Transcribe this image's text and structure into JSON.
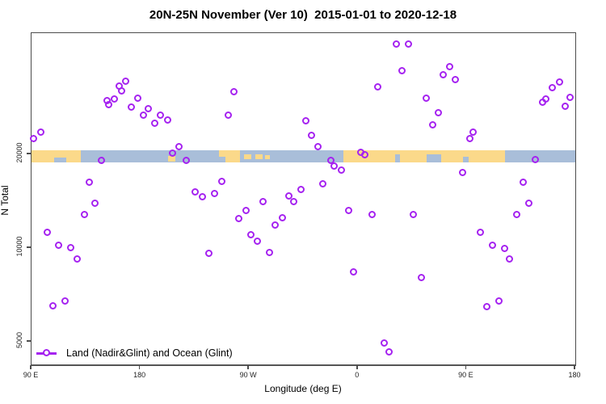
{
  "title": "20N-25N November (Ver 10)  2015-01-01 to 2020-12-18",
  "colors": {
    "marker": "#A522F0",
    "ocean": "#A9BED9",
    "land": "#FBD98A",
    "axis": "#4c4c4c",
    "text": "#000000"
  },
  "chart_data": {
    "type": "scatter",
    "title": "20N-25N November (Ver 10)  2015-01-01 to 2020-12-18",
    "xlabel": "Longitude (deg E)",
    "ylabel": "N Total",
    "x_axis": {
      "note": "longitude axis wraps eastward from 90E; internal coords run 90..540",
      "range": [
        90,
        540
      ],
      "ticks": [
        {
          "pos": 90,
          "label": "90 E"
        },
        {
          "pos": 180,
          "label": "180"
        },
        {
          "pos": 270,
          "label": "90 W"
        },
        {
          "pos": 360,
          "label": "0"
        },
        {
          "pos": 450,
          "label": "90 E"
        },
        {
          "pos": 540,
          "label": "180"
        }
      ]
    },
    "y_axis": {
      "scale": "log",
      "range": [
        4200,
        49000
      ],
      "ticks": [
        {
          "value": 20000,
          "label": "20000"
        },
        {
          "value": 10000,
          "label": "10000"
        },
        {
          "value": 5000,
          "label": "5000"
        }
      ]
    },
    "legend": {
      "label": "Land (Nadir&Glint) and Ocean (Glint)",
      "position": "bottom-left"
    },
    "map_band": {
      "center_value": 20000,
      "ocean_color": "#A9BED9",
      "land_color": "#FBD98A",
      "land_segments": [
        {
          "s": 90,
          "e": 131,
          "t": 0,
          "h": 1
        },
        {
          "s": 203,
          "e": 209,
          "t": 0.45,
          "h": 0.5
        },
        {
          "s": 245,
          "e": 251,
          "t": 0,
          "h": 0.55
        },
        {
          "s": 250.5,
          "e": 262.5,
          "t": 0,
          "h": 1
        },
        {
          "s": 266,
          "e": 272,
          "t": 0.35,
          "h": 0.4
        },
        {
          "s": 275,
          "e": 281,
          "t": 0.35,
          "h": 0.4
        },
        {
          "s": 283.5,
          "e": 287.5,
          "t": 0.4,
          "h": 0.35
        },
        {
          "s": 348,
          "e": 482,
          "t": 0,
          "h": 1
        }
      ],
      "water_overlays": [
        {
          "s": 109,
          "e": 119,
          "t": 0.6,
          "h": 0.4
        },
        {
          "s": 391,
          "e": 395,
          "t": 0.3,
          "h": 0.7
        },
        {
          "s": 417,
          "e": 429,
          "t": 0.35,
          "h": 0.65
        },
        {
          "s": 447,
          "e": 451.5,
          "t": 0.5,
          "h": 0.5
        }
      ]
    },
    "series": [
      {
        "name": "Land (Nadir&Glint) and Ocean (Glint)",
        "marker": "open-circle",
        "color": "#A522F0",
        "points": [
          [
            92,
            22400
          ],
          [
            98,
            23500
          ],
          [
            163,
            33100
          ],
          [
            168,
            34200
          ],
          [
            165,
            32000
          ],
          [
            153,
            29700
          ],
          [
            154,
            28800
          ],
          [
            159,
            30000
          ],
          [
            178,
            30300
          ],
          [
            173,
            28300
          ],
          [
            183,
            26600
          ],
          [
            187,
            28000
          ],
          [
            192,
            25100
          ],
          [
            197,
            26600
          ],
          [
            203,
            25700
          ],
          [
            207,
            20100
          ],
          [
            212,
            21100
          ],
          [
            218,
            19100
          ],
          [
            148,
            19100
          ],
          [
            138,
            16200
          ],
          [
            226,
            15100
          ],
          [
            232,
            14600
          ],
          [
            258,
            31800
          ],
          [
            253,
            26700
          ],
          [
            317,
            25500
          ],
          [
            322,
            22900
          ],
          [
            327,
            21100
          ],
          [
            377,
            32900
          ],
          [
            338,
            19100
          ],
          [
            341,
            18300
          ],
          [
            347,
            17800
          ],
          [
            363,
            20200
          ],
          [
            366,
            19900
          ],
          [
            248,
            16300
          ],
          [
            242,
            14900
          ],
          [
            313,
            15400
          ],
          [
            303,
            14700
          ],
          [
            331,
            16000
          ],
          [
            282,
            14100
          ],
          [
            307,
            14100
          ],
          [
            268,
            13200
          ],
          [
            262,
            12400
          ],
          [
            298,
            12500
          ],
          [
            292,
            11800
          ],
          [
            272,
            11000
          ],
          [
            277,
            10500
          ],
          [
            287,
            9660
          ],
          [
            237,
            9600
          ],
          [
            353,
            13200
          ],
          [
            372,
            12800
          ],
          [
            357,
            8360
          ],
          [
            382,
            4930
          ],
          [
            386,
            4620
          ],
          [
            143,
            13900
          ],
          [
            134,
            12800
          ],
          [
            103,
            11200
          ],
          [
            113,
            10200
          ],
          [
            123,
            9980
          ],
          [
            128,
            9190
          ],
          [
            108,
            6510
          ],
          [
            118,
            6750
          ],
          [
            392,
            45100
          ],
          [
            402,
            45100
          ],
          [
            397,
            37100
          ],
          [
            436,
            38200
          ],
          [
            431,
            36000
          ],
          [
            441,
            34700
          ],
          [
            417,
            30300
          ],
          [
            427,
            27200
          ],
          [
            422,
            24800
          ],
          [
            456,
            23500
          ],
          [
            453,
            22400
          ],
          [
            513,
            29400
          ],
          [
            516,
            30100
          ],
          [
            521,
            32700
          ],
          [
            527,
            34000
          ],
          [
            536,
            30400
          ],
          [
            532,
            28400
          ],
          [
            507,
            19200
          ],
          [
            447,
            17400
          ],
          [
            497,
            16200
          ],
          [
            406,
            12800
          ],
          [
            502,
            13900
          ],
          [
            492,
            12800
          ],
          [
            462,
            11200
          ],
          [
            472,
            10200
          ],
          [
            482,
            9950
          ],
          [
            486,
            9180
          ],
          [
            413,
            8000
          ],
          [
            467,
            6470
          ],
          [
            477,
            6730
          ]
        ]
      }
    ]
  }
}
